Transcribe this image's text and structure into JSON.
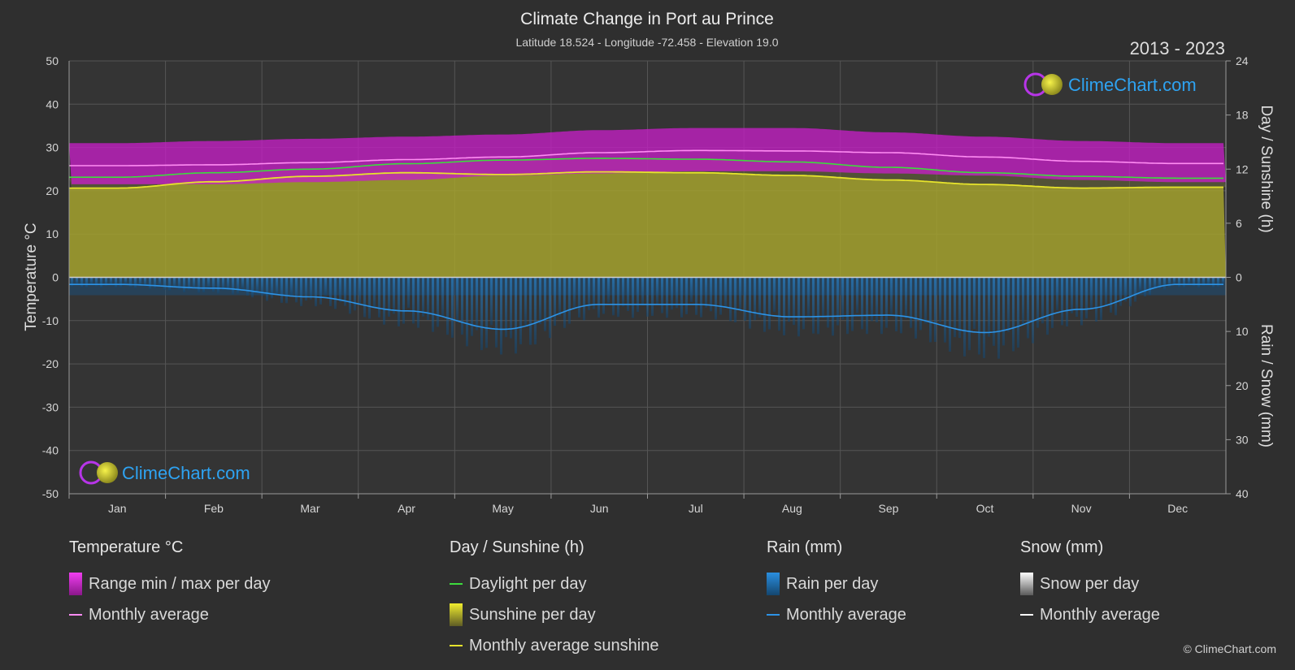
{
  "header": {
    "title": "Climate Change in Port au Prince",
    "subtitle": "Latitude 18.524 - Longitude -72.458 - Elevation 19.0",
    "years": "2013 - 2023"
  },
  "brand": {
    "text": "ClimeChart.com",
    "copyright": "© ClimeChart.com"
  },
  "colors": {
    "background": "#2f2f2f",
    "temp_range": "#c51fc5",
    "temp_avg": "#ff8cf3",
    "daylight": "#3ddc3d",
    "sunshine_fill": "#a4a22e",
    "sunshine_avg": "#e6e32c",
    "rain": "#1f6fb3",
    "rain_avg": "#2d93e6",
    "snow_avg": "#ffffff"
  },
  "chart_data": {
    "type": "line",
    "categories": [
      "Jan",
      "Feb",
      "Mar",
      "Apr",
      "May",
      "Jun",
      "Jul",
      "Aug",
      "Sep",
      "Oct",
      "Nov",
      "Dec"
    ],
    "y_left": {
      "label": "Temperature °C",
      "range": [
        -50,
        50
      ],
      "ticks": [
        "50",
        "40",
        "30",
        "20",
        "10",
        "0",
        "-10",
        "-20",
        "-30",
        "-40",
        "-50"
      ]
    },
    "y_right_top": {
      "label": "Day / Sunshine (h)",
      "range": [
        0,
        24
      ],
      "ticks": [
        "24",
        "18",
        "12",
        "6",
        "0"
      ]
    },
    "y_right_bottom": {
      "label": "Rain / Snow (mm)",
      "range": [
        0,
        40
      ],
      "ticks": [
        "10",
        "20",
        "30",
        "40"
      ]
    },
    "series": [
      {
        "name": "Temperature range min per day",
        "unit": "°C",
        "values": [
          21.5,
          21.5,
          22.0,
          22.5,
          23.5,
          24.0,
          24.5,
          24.5,
          24.0,
          23.5,
          22.5,
          22.0
        ]
      },
      {
        "name": "Temperature range max per day",
        "unit": "°C",
        "values": [
          31.0,
          31.5,
          32.0,
          32.5,
          33.0,
          34.0,
          34.5,
          34.5,
          33.5,
          32.5,
          31.5,
          31.0
        ]
      },
      {
        "name": "Monthly average temperature",
        "unit": "°C",
        "values": [
          25.8,
          26.0,
          26.5,
          27.2,
          27.8,
          28.8,
          29.3,
          29.2,
          28.8,
          27.8,
          26.8,
          26.3
        ]
      },
      {
        "name": "Daylight per day",
        "unit": "h",
        "values": [
          11.1,
          11.6,
          12.0,
          12.6,
          13.0,
          13.2,
          13.1,
          12.8,
          12.2,
          11.6,
          11.2,
          11.0
        ]
      },
      {
        "name": "Monthly average sunshine",
        "unit": "h",
        "values": [
          9.9,
          10.6,
          11.2,
          11.6,
          11.4,
          11.7,
          11.6,
          11.3,
          10.8,
          10.3,
          9.9,
          10.0
        ]
      },
      {
        "name": "Rain monthly average",
        "unit": "mm",
        "values": [
          1.3,
          2.0,
          3.6,
          6.2,
          9.6,
          5.0,
          5.0,
          7.3,
          7.0,
          10.2,
          5.9,
          1.3
        ]
      },
      {
        "name": "Snow monthly average",
        "unit": "mm",
        "values": [
          0,
          0,
          0,
          0,
          0,
          0,
          0,
          0,
          0,
          0,
          0,
          0
        ]
      }
    ],
    "grid": true
  },
  "legend": {
    "groups": [
      {
        "title": "Temperature °C",
        "items": [
          {
            "label": "Range min / max per day",
            "kind": "box",
            "swatch": "temp_range"
          },
          {
            "label": "Monthly average",
            "kind": "line",
            "swatch": "temp_avg"
          }
        ]
      },
      {
        "title": "Day / Sunshine (h)",
        "items": [
          {
            "label": "Daylight per day",
            "kind": "line",
            "swatch": "daylight"
          },
          {
            "label": "Sunshine per day",
            "kind": "box",
            "swatch": "sunshine_avg"
          },
          {
            "label": "Monthly average sunshine",
            "kind": "line",
            "swatch": "sunshine_avg"
          }
        ]
      },
      {
        "title": "Rain (mm)",
        "items": [
          {
            "label": "Rain per day",
            "kind": "box",
            "swatch": "rain"
          },
          {
            "label": "Monthly average",
            "kind": "line",
            "swatch": "rain_avg"
          }
        ]
      },
      {
        "title": "Snow (mm)",
        "items": [
          {
            "label": "Snow per day",
            "kind": "box",
            "swatch": "snow_avg"
          },
          {
            "label": "Monthly average",
            "kind": "line",
            "swatch": "snow_avg"
          }
        ]
      }
    ]
  }
}
